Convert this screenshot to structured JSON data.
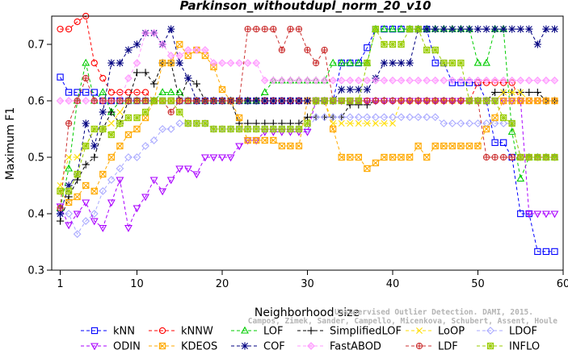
{
  "chart_data": {
    "type": "line",
    "title": "Parkinson_withoutdupl_norm_20_v10",
    "xlabel": "Neighborhood size",
    "ylabel": "Maximum F1",
    "xlim": [
      0,
      60
    ],
    "ylim": [
      0.3,
      0.75
    ],
    "xticks": [
      1,
      10,
      20,
      30,
      40,
      50,
      60
    ],
    "yticks": [
      0.3,
      0.4,
      0.5,
      0.6,
      0.7
    ],
    "grid": false,
    "legend_position": "bottom",
    "credit_lines": [
      "Unsupervised Outlier Detection. DAMI, 2015.",
      "Campos, Zimek, Sander, Campello, Micenkova, Schubert, Assent, Houle"
    ],
    "x": [
      1,
      2,
      3,
      4,
      5,
      6,
      7,
      8,
      9,
      10,
      11,
      12,
      13,
      14,
      15,
      16,
      17,
      18,
      19,
      20,
      21,
      22,
      23,
      24,
      25,
      26,
      27,
      28,
      29,
      30,
      31,
      32,
      33,
      34,
      35,
      36,
      37,
      38,
      39,
      40,
      41,
      42,
      43,
      44,
      45,
      46,
      47,
      48,
      49,
      50,
      51,
      52,
      53,
      54,
      55,
      56,
      57,
      58,
      59
    ],
    "series": [
      {
        "name": "kNN",
        "color": "#0000ff",
        "marker": "square",
        "values": [
          0.642,
          0.615,
          0.615,
          0.615,
          0.615,
          0.6,
          0.6,
          0.6,
          0.6,
          0.6,
          0.6,
          0.6,
          0.6,
          0.6,
          0.6,
          0.6,
          0.6,
          0.6,
          0.6,
          0.6,
          0.6,
          0.6,
          0.6,
          0.6,
          0.6,
          0.6,
          0.6,
          0.6,
          0.6,
          0.6,
          0.6,
          0.6,
          0.6,
          0.667,
          0.667,
          0.667,
          0.694,
          0.727,
          0.727,
          0.727,
          0.727,
          0.727,
          0.727,
          0.727,
          0.667,
          0.667,
          0.632,
          0.632,
          0.632,
          0.632,
          0.6,
          0.526,
          0.526,
          0.5,
          0.4,
          0.4,
          0.333,
          0.333,
          0.333
        ]
      },
      {
        "name": "kNNW",
        "color": "#ff0000",
        "marker": "circle",
        "values": [
          0.727,
          0.727,
          0.74,
          0.75,
          0.667,
          0.64,
          0.615,
          0.615,
          0.615,
          0.615,
          0.615,
          0.6,
          0.6,
          0.6,
          0.6,
          0.6,
          0.6,
          0.6,
          0.6,
          0.6,
          0.6,
          0.6,
          0.6,
          0.6,
          0.6,
          0.6,
          0.6,
          0.6,
          0.6,
          0.6,
          0.6,
          0.6,
          0.6,
          0.6,
          0.6,
          0.6,
          0.6,
          0.6,
          0.6,
          0.6,
          0.6,
          0.6,
          0.6,
          0.6,
          0.6,
          0.6,
          0.6,
          0.6,
          0.6,
          0.632,
          0.632,
          0.632,
          0.632,
          0.632,
          0.6,
          0.6,
          0.6,
          0.6,
          0.6
        ]
      },
      {
        "name": "LOF",
        "color": "#00cc00",
        "marker": "triangle-up",
        "values": [
          0.41,
          0.48,
          0.6,
          0.667,
          0.6,
          0.615,
          0.58,
          0.6,
          0.6,
          0.6,
          0.6,
          0.6,
          0.615,
          0.615,
          0.615,
          0.6,
          0.6,
          0.6,
          0.6,
          0.6,
          0.6,
          0.6,
          0.6,
          0.6,
          0.615,
          0.636,
          0.636,
          0.636,
          0.636,
          0.636,
          0.636,
          0.636,
          0.667,
          0.667,
          0.667,
          0.667,
          0.667,
          0.727,
          0.727,
          0.727,
          0.727,
          0.727,
          0.727,
          0.727,
          0.727,
          0.727,
          0.727,
          0.727,
          0.727,
          0.667,
          0.667,
          0.727,
          0.727,
          0.545,
          0.462,
          0.5,
          0.5,
          0.5,
          0.5
        ]
      },
      {
        "name": "SimplifiedLOF",
        "color": "#000000",
        "marker": "plus",
        "values": [
          0.387,
          0.43,
          0.46,
          0.487,
          0.5,
          0.55,
          0.58,
          0.56,
          0.6,
          0.65,
          0.65,
          0.63,
          0.667,
          0.667,
          0.6,
          0.64,
          0.63,
          0.6,
          0.6,
          0.6,
          0.6,
          0.56,
          0.56,
          0.56,
          0.56,
          0.56,
          0.56,
          0.56,
          0.56,
          0.571,
          0.571,
          0.571,
          0.571,
          0.571,
          0.593,
          0.593,
          0.593,
          0.6,
          0.6,
          0.6,
          0.6,
          0.6,
          0.6,
          0.6,
          0.6,
          0.6,
          0.6,
          0.6,
          0.6,
          0.6,
          0.6,
          0.615,
          0.615,
          0.615,
          0.615,
          0.615,
          0.615,
          0.6,
          0.6
        ]
      },
      {
        "name": "LoOP",
        "color": "#ffdd00",
        "marker": "x",
        "values": [
          0.45,
          0.5,
          0.5,
          0.52,
          0.55,
          0.55,
          0.56,
          0.58,
          0.6,
          0.6,
          0.6,
          0.6,
          0.6,
          0.6,
          0.6,
          0.6,
          0.6,
          0.6,
          0.6,
          0.6,
          0.6,
          0.6,
          0.6,
          0.6,
          0.6,
          0.6,
          0.6,
          0.6,
          0.6,
          0.6,
          0.6,
          0.6,
          0.56,
          0.56,
          0.56,
          0.56,
          0.56,
          0.56,
          0.56,
          0.56,
          0.6,
          0.6,
          0.6,
          0.6,
          0.6,
          0.6,
          0.6,
          0.6,
          0.6,
          0.6,
          0.6,
          0.6,
          0.615,
          0.615,
          0.615,
          0.6,
          0.6,
          0.6,
          0.6
        ]
      },
      {
        "name": "LDOF",
        "color": "#aaaaff",
        "marker": "diamond",
        "values": [
          0.4,
          0.4,
          0.364,
          0.387,
          0.4,
          0.44,
          0.46,
          0.48,
          0.5,
          0.5,
          0.52,
          0.53,
          0.55,
          0.55,
          0.56,
          0.56,
          0.56,
          0.56,
          0.55,
          0.55,
          0.55,
          0.55,
          0.55,
          0.55,
          0.55,
          0.55,
          0.55,
          0.55,
          0.55,
          0.55,
          0.571,
          0.571,
          0.571,
          0.571,
          0.571,
          0.571,
          0.571,
          0.571,
          0.571,
          0.571,
          0.571,
          0.571,
          0.571,
          0.571,
          0.571,
          0.56,
          0.56,
          0.56,
          0.56,
          0.56,
          0.56,
          0.56,
          0.56,
          0.56,
          0.5,
          0.5,
          0.5,
          0.5,
          0.5
        ]
      },
      {
        "name": "ODIN",
        "color": "#aa00ff",
        "marker": "triangle-down",
        "values": [
          0.413,
          0.38,
          0.4,
          0.42,
          0.387,
          0.375,
          0.42,
          0.46,
          0.375,
          0.41,
          0.43,
          0.46,
          0.44,
          0.46,
          0.48,
          0.48,
          0.47,
          0.5,
          0.5,
          0.5,
          0.5,
          0.52,
          0.53,
          0.53,
          0.545,
          0.545,
          0.545,
          0.545,
          0.545,
          0.545,
          0.6,
          0.6,
          0.6,
          0.6,
          0.6,
          0.6,
          0.6,
          0.6,
          0.6,
          0.6,
          0.6,
          0.6,
          0.6,
          0.6,
          0.6,
          0.6,
          0.6,
          0.6,
          0.6,
          0.6,
          0.6,
          0.6,
          0.6,
          0.6,
          0.6,
          0.4,
          0.4,
          0.4,
          0.4
        ]
      },
      {
        "name": "KDEOS",
        "color": "#ffaa00",
        "marker": "square-x",
        "values": [
          0.44,
          0.42,
          0.43,
          0.45,
          0.44,
          0.47,
          0.5,
          0.52,
          0.54,
          0.55,
          0.57,
          0.6,
          0.667,
          0.667,
          0.7,
          0.68,
          0.69,
          0.68,
          0.66,
          0.62,
          0.6,
          0.57,
          0.53,
          0.53,
          0.53,
          0.53,
          0.52,
          0.52,
          0.52,
          0.6,
          0.6,
          0.6,
          0.55,
          0.5,
          0.5,
          0.5,
          0.48,
          0.49,
          0.5,
          0.5,
          0.5,
          0.5,
          0.52,
          0.5,
          0.52,
          0.52,
          0.52,
          0.52,
          0.52,
          0.52,
          0.55,
          0.57,
          0.6,
          0.6,
          0.6,
          0.6,
          0.6,
          0.6,
          0.6
        ]
      },
      {
        "name": "COF",
        "color": "#000080",
        "marker": "star",
        "values": [
          0.4,
          0.45,
          0.47,
          0.56,
          0.52,
          0.58,
          0.667,
          0.667,
          0.69,
          0.7,
          0.72,
          0.72,
          0.7,
          0.727,
          0.667,
          0.64,
          0.6,
          0.6,
          0.6,
          0.6,
          0.6,
          0.6,
          0.6,
          0.6,
          0.6,
          0.6,
          0.6,
          0.6,
          0.6,
          0.6,
          0.6,
          0.6,
          0.6,
          0.62,
          0.62,
          0.62,
          0.62,
          0.64,
          0.667,
          0.667,
          0.667,
          0.667,
          0.727,
          0.727,
          0.727,
          0.727,
          0.727,
          0.727,
          0.727,
          0.727,
          0.727,
          0.727,
          0.727,
          0.727,
          0.727,
          0.727,
          0.7,
          0.727,
          0.727
        ]
      },
      {
        "name": "FastABOD",
        "color": "#ff99ff",
        "marker": "diamond-filled",
        "values": [
          0.6,
          0.6,
          0.6,
          0.6,
          0.6,
          0.6,
          0.6,
          0.6,
          0.64,
          0.667,
          0.72,
          0.72,
          0.7,
          0.68,
          0.68,
          0.69,
          0.69,
          0.69,
          0.667,
          0.667,
          0.667,
          0.667,
          0.667,
          0.667,
          0.636,
          0.636,
          0.636,
          0.636,
          0.636,
          0.636,
          0.636,
          0.636,
          0.636,
          0.636,
          0.636,
          0.636,
          0.636,
          0.636,
          0.636,
          0.636,
          0.636,
          0.636,
          0.636,
          0.636,
          0.636,
          0.636,
          0.636,
          0.636,
          0.636,
          0.636,
          0.636,
          0.636,
          0.636,
          0.636,
          0.636,
          0.636,
          0.636,
          0.636,
          0.636
        ]
      },
      {
        "name": "LDF",
        "color": "#cc3333",
        "marker": "circle-plus",
        "values": [
          0.41,
          0.56,
          0.6,
          0.64,
          0.6,
          0.6,
          0.6,
          0.6,
          0.6,
          0.6,
          0.6,
          0.6,
          0.6,
          0.58,
          0.6,
          0.6,
          0.6,
          0.6,
          0.6,
          0.6,
          0.6,
          0.6,
          0.727,
          0.727,
          0.727,
          0.727,
          0.69,
          0.727,
          0.727,
          0.69,
          0.667,
          0.69,
          0.6,
          0.6,
          0.6,
          0.6,
          0.6,
          0.6,
          0.6,
          0.6,
          0.6,
          0.6,
          0.6,
          0.6,
          0.6,
          0.6,
          0.6,
          0.6,
          0.6,
          0.6,
          0.5,
          0.5,
          0.5,
          0.5,
          0.5,
          0.5,
          0.5,
          0.5,
          0.5
        ]
      },
      {
        "name": "INFLO",
        "color": "#99cc00",
        "marker": "square-star",
        "values": [
          0.44,
          0.44,
          0.47,
          0.52,
          0.55,
          0.55,
          0.54,
          0.56,
          0.57,
          0.57,
          0.58,
          0.6,
          0.6,
          0.6,
          0.58,
          0.56,
          0.56,
          0.56,
          0.55,
          0.55,
          0.55,
          0.55,
          0.55,
          0.55,
          0.55,
          0.55,
          0.55,
          0.55,
          0.55,
          0.56,
          0.6,
          0.6,
          0.6,
          0.6,
          0.6,
          0.6,
          0.667,
          0.727,
          0.7,
          0.7,
          0.7,
          0.727,
          0.727,
          0.69,
          0.69,
          0.667,
          0.667,
          0.667,
          0.6,
          0.6,
          0.6,
          0.6,
          0.57,
          0.56,
          0.5,
          0.5,
          0.5,
          0.5,
          0.5
        ]
      }
    ]
  }
}
